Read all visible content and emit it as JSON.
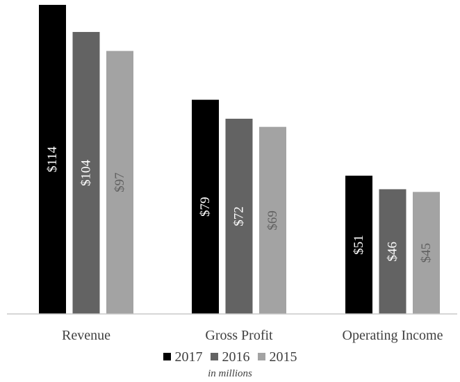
{
  "chart_data": {
    "type": "bar",
    "categories": [
      "Revenue",
      "Gross Profit",
      "Operating Income"
    ],
    "series": [
      {
        "name": "2017",
        "values": [
          114,
          79,
          51
        ],
        "labels": [
          "$114",
          "$79",
          "$51"
        ],
        "color": "#000000"
      },
      {
        "name": "2016",
        "values": [
          104,
          72,
          46
        ],
        "labels": [
          "$104",
          "$72",
          "$46"
        ],
        "color": "#636363"
      },
      {
        "name": "2015",
        "values": [
          97,
          69,
          45
        ],
        "labels": [
          "$97",
          "$69",
          "$45"
        ],
        "color": "#a3a3a3"
      }
    ],
    "ylim": [
      0,
      114
    ],
    "unit_note": "in millions",
    "data_label_colors": [
      "#ffffff",
      "#ffffff",
      "#606060"
    ],
    "axis_label_color": "#404040",
    "grid": false,
    "legend_position": "bottom"
  }
}
